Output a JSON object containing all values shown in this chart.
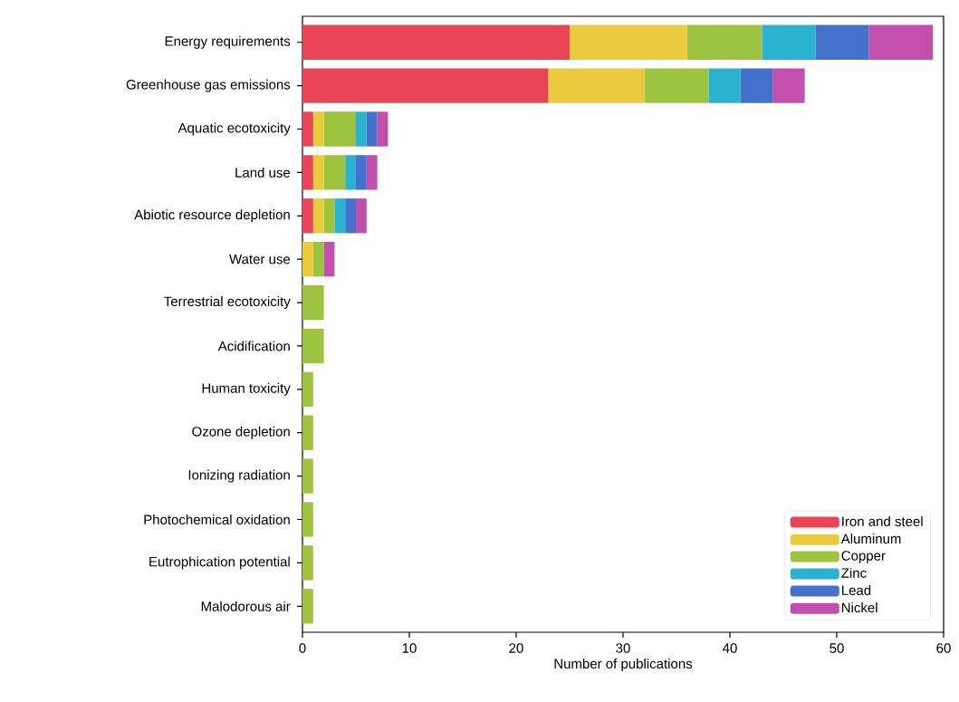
{
  "chart_data": {
    "type": "bar",
    "orientation": "horizontal",
    "stacked": true,
    "xlabel": "Number of publications",
    "categories": [
      "Energy requirements",
      "Greenhouse gas emissions",
      "Aquatic ecotoxicity",
      "Land use",
      "Abiotic resource depletion",
      "Water use",
      "Terrestrial ecotoxicity",
      "Acidification",
      "Human toxicity",
      "Ozone depletion",
      "Ionizing radiation",
      "Photochemical oxidation",
      "Eutrophication potential",
      "Malodorous air"
    ],
    "series": [
      {
        "name": "Iron and steel",
        "color": "#e84655",
        "values": [
          25,
          23,
          1,
          1,
          1,
          0,
          0,
          0,
          0,
          0,
          0,
          0,
          0,
          0
        ]
      },
      {
        "name": "Aluminum",
        "color": "#ecca3e",
        "values": [
          11,
          9,
          1,
          1,
          1,
          1,
          0,
          0,
          0,
          0,
          0,
          0,
          0,
          0
        ]
      },
      {
        "name": "Copper",
        "color": "#9ec43f",
        "values": [
          7,
          6,
          3,
          2,
          1,
          1,
          2,
          2,
          1,
          1,
          1,
          1,
          1,
          1
        ]
      },
      {
        "name": "Zinc",
        "color": "#2ab2d0",
        "values": [
          5,
          3,
          1,
          1,
          1,
          0,
          0,
          0,
          0,
          0,
          0,
          0,
          0,
          0
        ]
      },
      {
        "name": "Lead",
        "color": "#4571cd",
        "values": [
          5,
          3,
          1,
          1,
          1,
          0,
          0,
          0,
          0,
          0,
          0,
          0,
          0,
          0
        ]
      },
      {
        "name": "Nickel",
        "color": "#c34fad",
        "values": [
          6,
          3,
          1,
          1,
          1,
          1,
          0,
          0,
          0,
          0,
          0,
          0,
          0,
          0
        ]
      }
    ],
    "xlim": [
      0,
      60
    ],
    "xticks": [
      0,
      10,
      20,
      30,
      40,
      50,
      60
    ],
    "legend": "bottom right",
    "grid": false
  }
}
